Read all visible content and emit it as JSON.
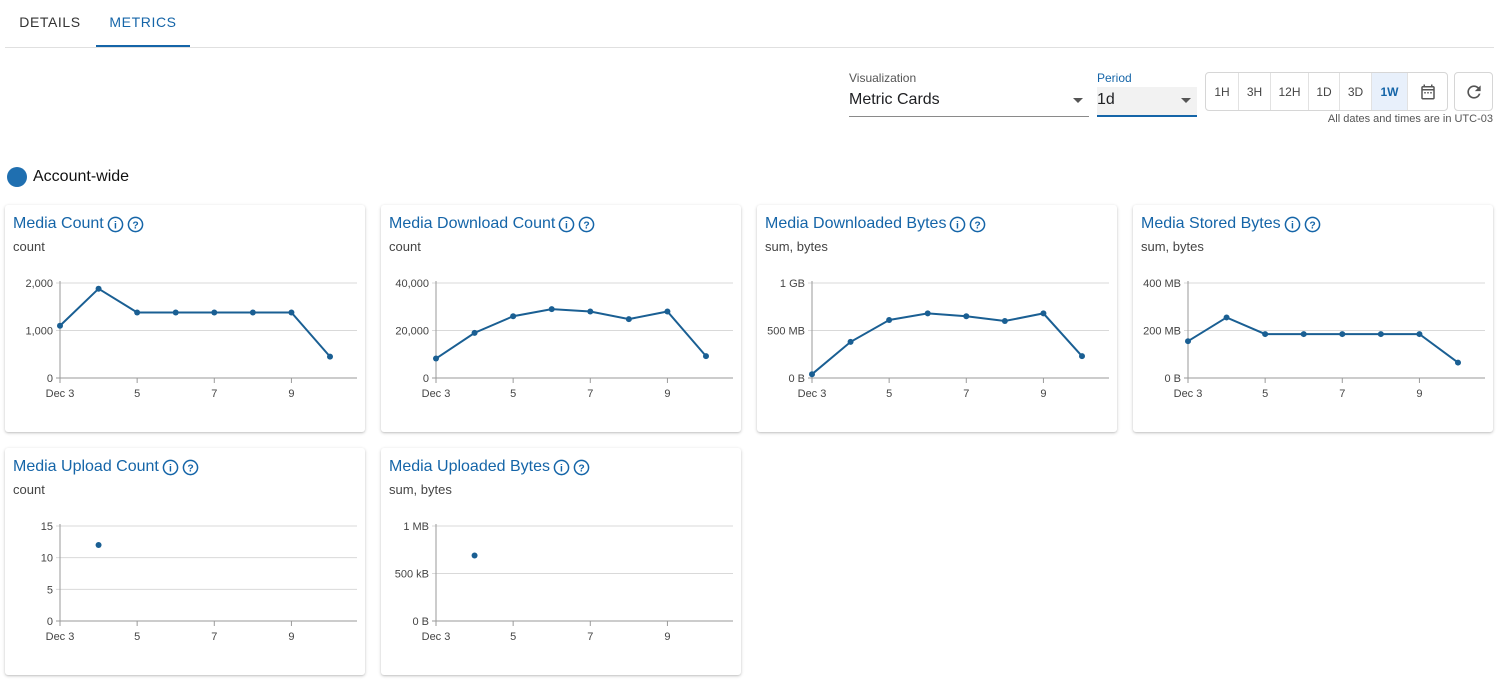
{
  "tabs": [
    {
      "label": "DETAILS",
      "active": false
    },
    {
      "label": "METRICS",
      "active": true
    }
  ],
  "controls": {
    "visualization_label": "Visualization",
    "visualization_value": "Metric Cards",
    "period_label": "Period",
    "period_value": "1d",
    "ranges": [
      "1H",
      "3H",
      "12H",
      "1D",
      "3D",
      "1W"
    ],
    "active_range": "1W",
    "calendar_icon": "calendar-icon",
    "refresh_icon": "refresh-icon",
    "timezone_note": "All dates and times are in UTC-03"
  },
  "scope": {
    "label": "Account-wide",
    "color": "#1f6fb0"
  },
  "colors": {
    "accent": "#1565a8",
    "line": "#1a5f93"
  },
  "cards": [
    {
      "title": "Media Count",
      "subtitle": "count",
      "chart_data": {
        "type": "line",
        "x_ticks": [
          "Dec 3",
          "5",
          "7",
          "9"
        ],
        "y_ticks": [
          "0",
          "1,000",
          "2,000"
        ],
        "ylim": [
          0,
          2000
        ],
        "x": [
          3,
          4,
          5,
          6,
          7,
          8,
          9,
          10
        ],
        "values": [
          1100,
          1880,
          1380,
          1380,
          1380,
          1380,
          1380,
          450
        ]
      }
    },
    {
      "title": "Media Download Count",
      "subtitle": "count",
      "chart_data": {
        "type": "line",
        "x_ticks": [
          "Dec 3",
          "5",
          "7",
          "9"
        ],
        "y_ticks": [
          "0",
          "20,000",
          "40,000"
        ],
        "ylim": [
          0,
          40000
        ],
        "x": [
          3,
          4,
          5,
          6,
          7,
          8,
          9,
          10
        ],
        "values": [
          8200,
          19000,
          26000,
          29000,
          28000,
          24800,
          28000,
          9200
        ]
      }
    },
    {
      "title": "Media Downloaded Bytes",
      "subtitle": "sum, bytes",
      "chart_data": {
        "type": "line",
        "x_ticks": [
          "Dec 3",
          "5",
          "7",
          "9"
        ],
        "y_ticks": [
          "0 B",
          "500 MB",
          "1 GB"
        ],
        "ylim": [
          0,
          1000
        ],
        "x": [
          3,
          4,
          5,
          6,
          7,
          8,
          9,
          10
        ],
        "values": [
          40,
          380,
          610,
          680,
          650,
          600,
          680,
          230
        ]
      }
    },
    {
      "title": "Media Stored Bytes",
      "subtitle": "sum, bytes",
      "chart_data": {
        "type": "line",
        "x_ticks": [
          "Dec 3",
          "5",
          "7",
          "9"
        ],
        "y_ticks": [
          "0 B",
          "200 MB",
          "400 MB"
        ],
        "ylim": [
          0,
          400
        ],
        "x": [
          3,
          4,
          5,
          6,
          7,
          8,
          9,
          10
        ],
        "values": [
          155,
          255,
          185,
          185,
          185,
          185,
          185,
          65
        ]
      }
    },
    {
      "title": "Media Upload Count",
      "subtitle": "count",
      "chart_data": {
        "type": "scatter",
        "x_ticks": [
          "Dec 3",
          "5",
          "7",
          "9"
        ],
        "y_ticks": [
          "0",
          "5",
          "10",
          "15"
        ],
        "ylim": [
          0,
          15
        ],
        "x": [
          4
        ],
        "values": [
          12
        ]
      }
    },
    {
      "title": "Media Uploaded Bytes",
      "subtitle": "sum, bytes",
      "chart_data": {
        "type": "scatter",
        "x_ticks": [
          "Dec 3",
          "5",
          "7",
          "9"
        ],
        "y_ticks": [
          "0 B",
          "500 kB",
          "1 MB"
        ],
        "ylim": [
          0,
          1000
        ],
        "x": [
          4
        ],
        "values": [
          690
        ]
      }
    }
  ]
}
